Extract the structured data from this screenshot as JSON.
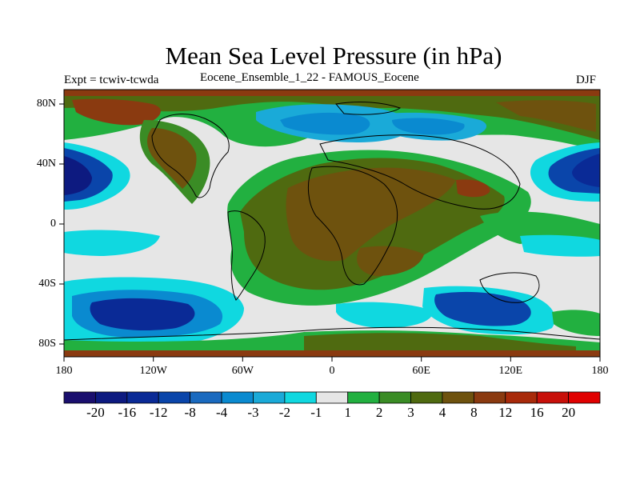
{
  "title": "Mean Sea Level Pressure (in hPa)",
  "subtitle_left": "Expt = tcwiv-tcwda",
  "subtitle_center": "Eocene_Ensemble_1_22 - FAMOUS_Eocene",
  "subtitle_right": "DJF",
  "lat_ticks": [
    "80N",
    "40N",
    "0",
    "40S",
    "80S"
  ],
  "lon_ticks": [
    "180",
    "120W",
    "60W",
    "0",
    "60E",
    "120E",
    "180"
  ],
  "colorbar": {
    "labels": [
      "-20",
      "-16",
      "-12",
      "-8",
      "-4",
      "-3",
      "-2",
      "-1",
      "1",
      "2",
      "3",
      "4",
      "8",
      "12",
      "16",
      "20"
    ],
    "colors": [
      "#1a0f6e",
      "#0d1a80",
      "#0a2a96",
      "#0a45aa",
      "#1a6abf",
      "#0a8ad0",
      "#1aaad8",
      "#10d8e0",
      "#e6e6e6",
      "#22b040",
      "#3a8c25",
      "#4f6a10",
      "#6e520e",
      "#8a3a10",
      "#a82a0a",
      "#c8100a",
      "#e00000"
    ]
  },
  "map": {
    "projection": "cylindrical equidistant",
    "lon_range": [
      -180,
      180
    ],
    "lat_range": [
      -90,
      90
    ],
    "field": "Mean Sea Level Pressure difference (hPa)"
  }
}
